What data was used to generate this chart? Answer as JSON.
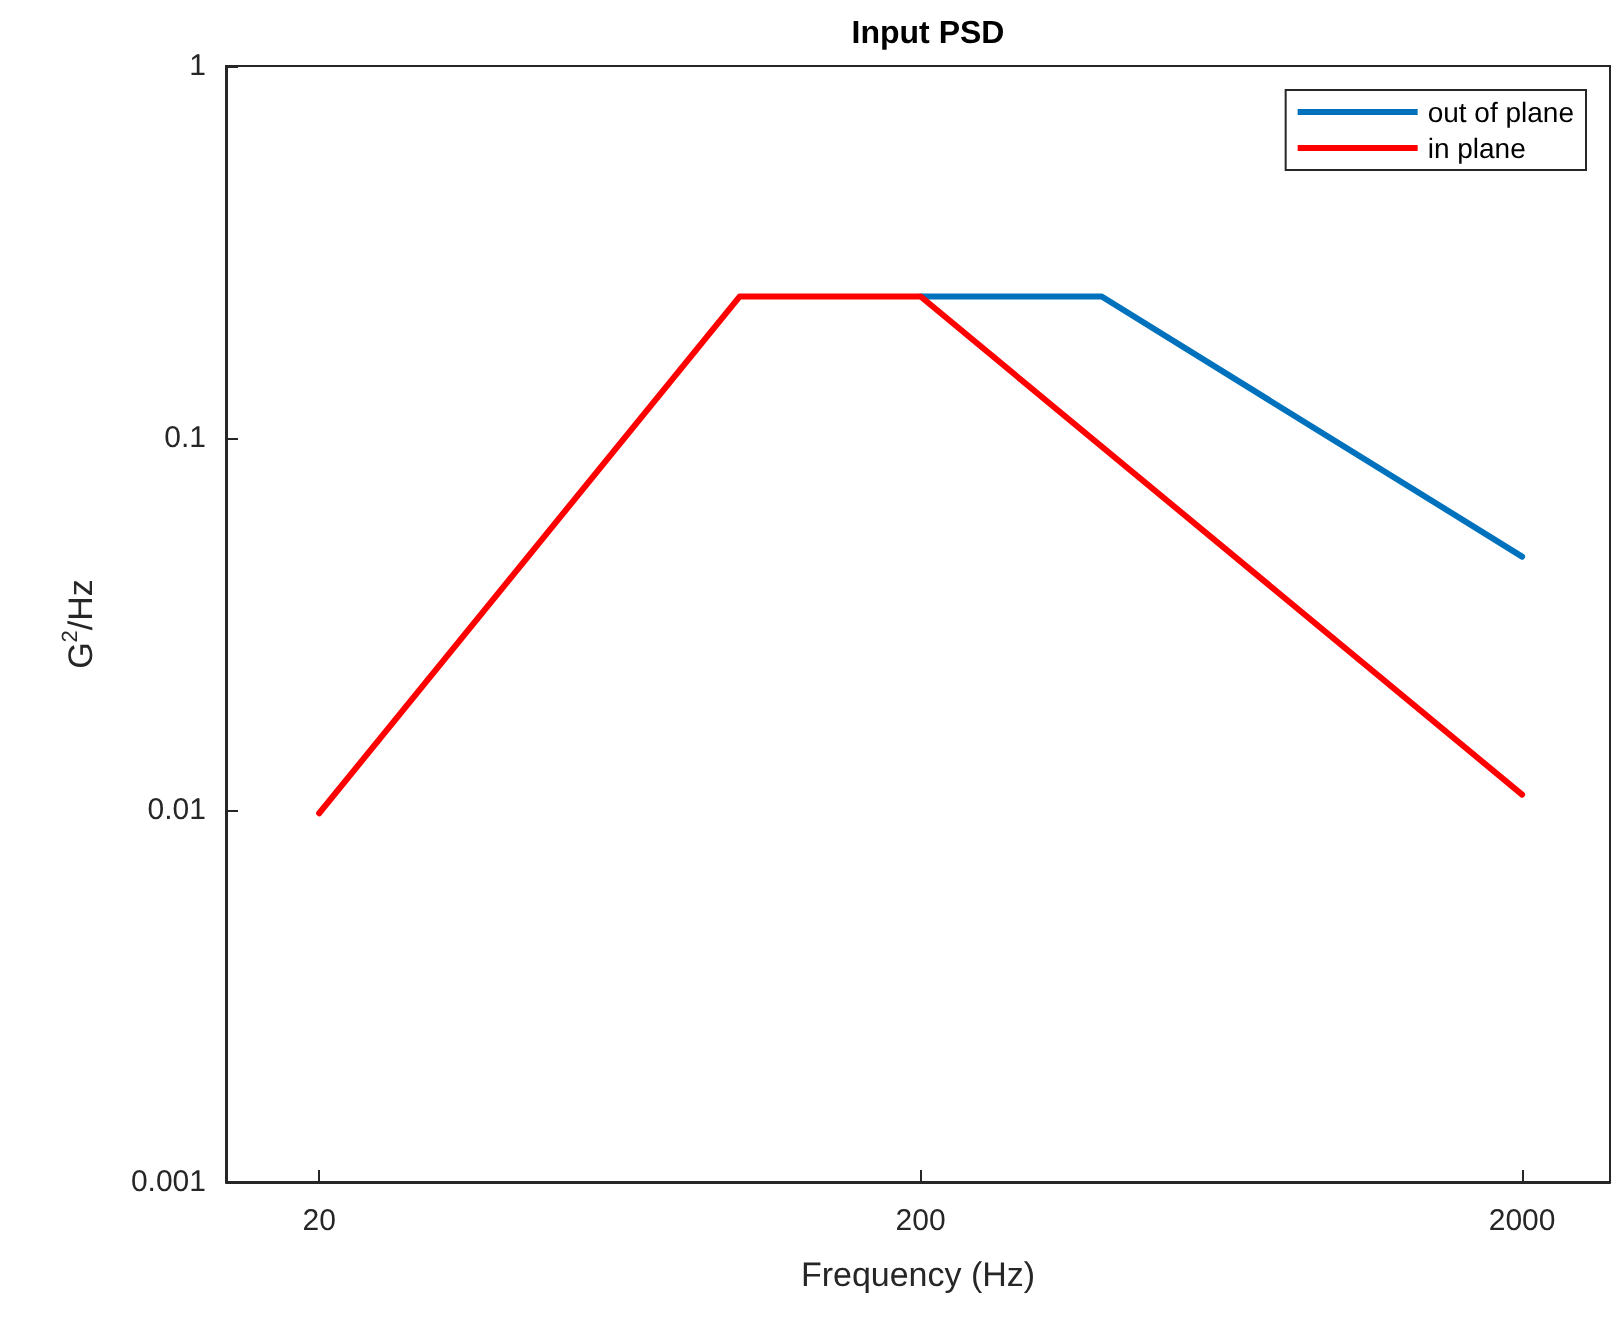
{
  "chart_data": {
    "type": "line",
    "title": "Input PSD",
    "xlabel": "Frequency (Hz)",
    "ylabel": "G$^{2}$/Hz",
    "log": "xy",
    "grid": false,
    "legend": "top right",
    "marker": "none",
    "line_style": "solid",
    "xlim": [
      14,
      2800
    ],
    "xticks": [
      20,
      200,
      2000
    ],
    "ylim": [
      0.001,
      1
    ],
    "yticks": [
      0.001,
      0.01,
      0.1,
      1
    ],
    "series": [
      {
        "name": "out of plane",
        "color": "#0072bd",
        "x": [
          200,
          400,
          2000
        ],
        "values": [
          0.24,
          0.24,
          0.048
        ]
      },
      {
        "name": "in plane",
        "color": "#ff0000",
        "x": [
          20,
          100,
          200,
          2000
        ],
        "values": [
          0.0098,
          0.24,
          0.24,
          0.011
        ]
      }
    ]
  }
}
